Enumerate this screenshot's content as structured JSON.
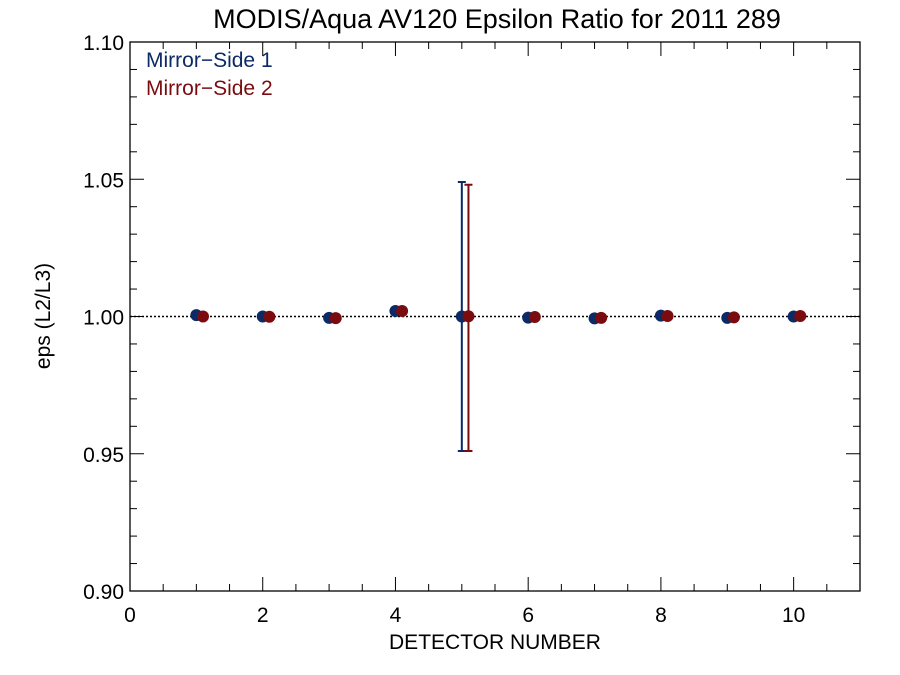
{
  "chart_data": {
    "type": "scatter",
    "title": "MODIS/Aqua AV120 Epsilon Ratio for 2011 289",
    "xlabel": "DETECTOR NUMBER",
    "ylabel": "eps (L2/L3)",
    "xlim": [
      0,
      11
    ],
    "ylim": [
      0.9,
      1.1
    ],
    "x_ticks": [
      0,
      2,
      4,
      6,
      8,
      10
    ],
    "x_tick_labels": [
      "0",
      "2",
      "4",
      "6",
      "8",
      "10"
    ],
    "y_ticks": [
      0.9,
      0.95,
      1.0,
      1.05,
      1.1
    ],
    "y_tick_labels": [
      "0.90",
      "0.95",
      "1.00",
      "1.05",
      "1.10"
    ],
    "reference_line": 1.0,
    "legend_placement": "top-left",
    "series": [
      {
        "name": "Mirror−Side 1",
        "color": "#0b2a66",
        "x": [
          1,
          2,
          3,
          4,
          5,
          6,
          7,
          8,
          9,
          10
        ],
        "y": [
          1.0005,
          1.0,
          0.9995,
          1.002,
          1.0,
          0.9996,
          0.9993,
          1.0003,
          0.9995,
          1.0
        ],
        "error_bars": [
          null,
          null,
          null,
          null,
          [
            0.951,
            1.049
          ],
          null,
          null,
          null,
          null,
          null
        ]
      },
      {
        "name": "Mirror−Side 2",
        "color": "#7a0c10",
        "x": [
          1,
          2,
          3,
          4,
          5,
          6,
          7,
          8,
          9,
          10
        ],
        "y": [
          1.0,
          0.9999,
          0.9994,
          1.002,
          1.0001,
          0.9998,
          0.9995,
          1.0002,
          0.9997,
          1.0002
        ],
        "error_bars": [
          null,
          null,
          null,
          null,
          [
            0.951,
            1.048
          ],
          null,
          null,
          null,
          null,
          null
        ]
      }
    ]
  }
}
